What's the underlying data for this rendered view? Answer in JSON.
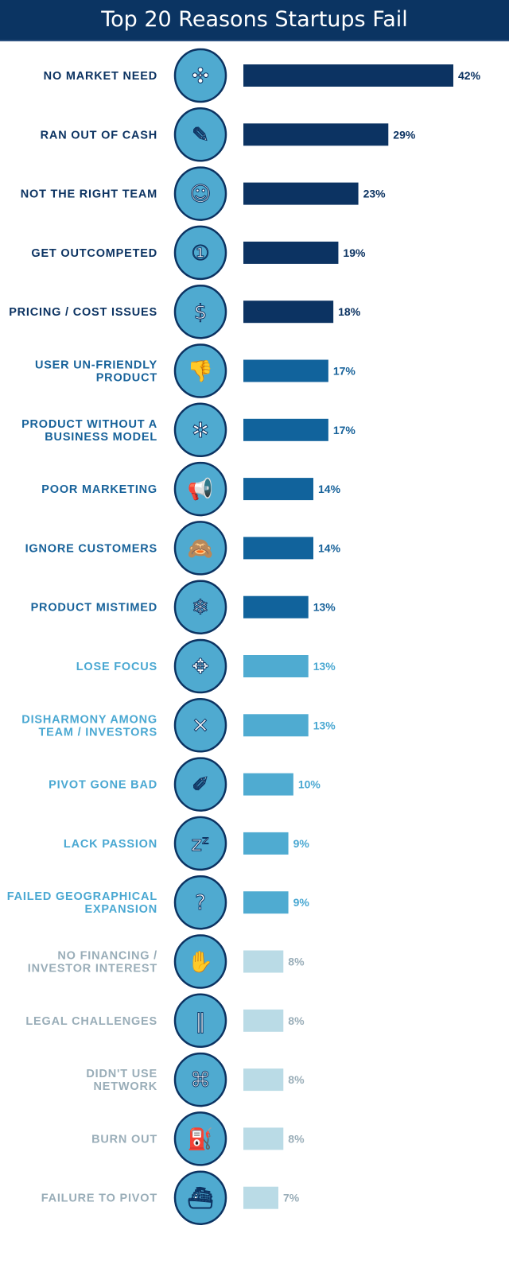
{
  "chart_data": {
    "type": "bar",
    "orientation": "horizontal",
    "title": "Top 20 Reasons Startups Fail",
    "unit": "%",
    "xlim": [
      0,
      42
    ],
    "grid": false,
    "categories": [
      [
        "NO MARKET NEED"
      ],
      [
        "RAN OUT OF CASH"
      ],
      [
        "NOT THE RIGHT TEAM"
      ],
      [
        "GET OUTCOMPETED"
      ],
      [
        "PRICING / COST ISSUES"
      ],
      [
        "USER UN-FRIENDLY",
        "PRODUCT"
      ],
      [
        "PRODUCT WITHOUT A",
        "BUSINESS MODEL"
      ],
      [
        "POOR MARKETING"
      ],
      [
        "IGNORE CUSTOMERS"
      ],
      [
        "PRODUCT MISTIMED"
      ],
      [
        "LOSE FOCUS"
      ],
      [
        "DISHARMONY AMONG",
        "TEAM / INVESTORS"
      ],
      [
        "PIVOT GONE BAD"
      ],
      [
        "LACK PASSION"
      ],
      [
        "FAILED GEOGRAPHICAL",
        "EXPANSION"
      ],
      [
        "NO FINANCING /",
        "INVESTOR INTEREST"
      ],
      [
        "LEGAL CHALLENGES"
      ],
      [
        "DIDN'T USE",
        "NETWORK"
      ],
      [
        "BURN OUT"
      ],
      [
        "FAILURE TO PIVOT"
      ]
    ],
    "values": [
      42,
      29,
      23,
      19,
      18,
      17,
      17,
      14,
      14,
      13,
      13,
      13,
      10,
      9,
      9,
      8,
      8,
      8,
      8,
      7
    ],
    "value_labels": [
      "42%",
      "29%",
      "23%",
      "19%",
      "18%",
      "17%",
      "17%",
      "14%",
      "14%",
      "13%",
      "13%",
      "13%",
      "10%",
      "9%",
      "9%",
      "8%",
      "8%",
      "8%",
      "8%",
      "7%"
    ],
    "tiers": [
      0,
      0,
      0,
      0,
      0,
      1,
      1,
      1,
      1,
      1,
      2,
      2,
      2,
      2,
      2,
      3,
      3,
      3,
      3,
      3
    ],
    "icons": [
      "puzzle-icon",
      "empty-pocket-icon",
      "team-icon",
      "podium-icon",
      "coins-icon",
      "thumbs-down-icon",
      "cart-wheel-icon",
      "megaphone-icon",
      "see-no-evil-monkey-icon",
      "snowflake-icon",
      "scatter-arrows-icon",
      "oars-icon",
      "broken-pencil-icon",
      "sleep-icon",
      "map-pin-question-icon",
      "open-hand-icon",
      "prison-bars-icon",
      "network-icon",
      "fuel-pump-icon",
      "sinking-ship-icon"
    ],
    "colors": {
      "bars": [
        "#0c3362",
        "#11639c",
        "#4fabd1",
        "#badbe6"
      ],
      "labels": [
        "#0c3362",
        "#17629a",
        "#4aa8d2",
        "#99adb8"
      ],
      "icon_fill": "#4faad0",
      "icon_stroke": "#0c3362",
      "header": "#0b3462"
    }
  }
}
